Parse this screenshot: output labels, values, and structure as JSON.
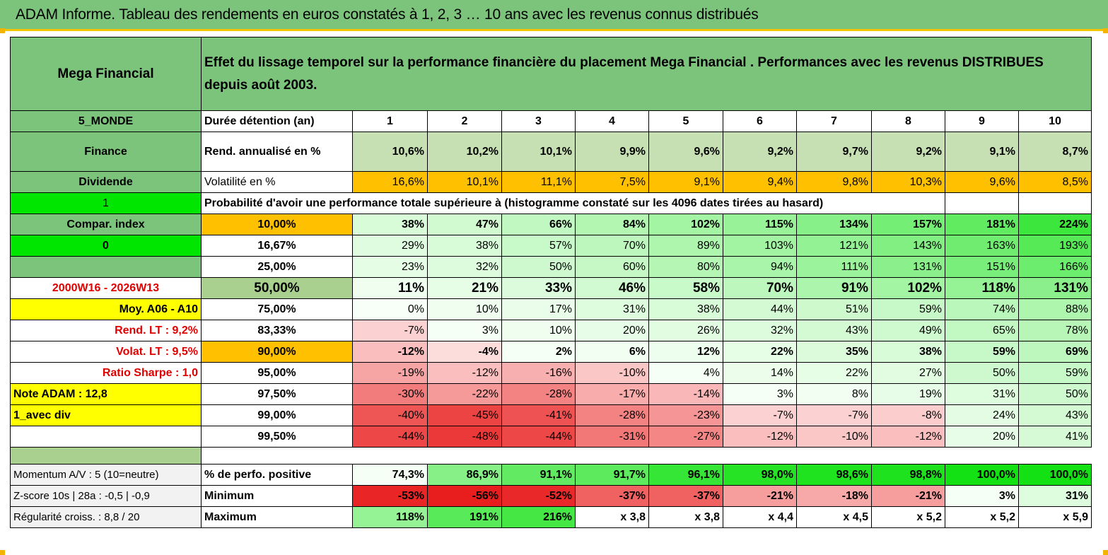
{
  "title": "ADAM Informe. Tableau des rendements en euros constatés à 1, 2, 3 … 10 ans avec les revenus connus distribués",
  "header": {
    "fund_name": "Mega Financial",
    "description": "Effet du lissage temporel sur la performance financière du placement Mega Financial . Performances avec les revenus DISTRIBUES depuis août 2003."
  },
  "left_labels": {
    "zone": "5_MONDE",
    "sector": "Finance",
    "dividend": "Dividende",
    "flag1": "1",
    "compar": "Compar. index",
    "flag0": "0",
    "period": "2000W16 - 2026W13",
    "moy": "Moy. A06 - A10",
    "rend_lt": "Rend. LT :   9,2%",
    "volat_lt": "Volat. LT :   9,5%",
    "sharpe": "Ratio Sharpe :    1,0",
    "note": "Note ADAM : 12,8",
    "avec_div": "1_avec div",
    "momentum": "Momentum A/V : 5 (10=neutre)",
    "zscore": "Z-score 10s | 28a : -0,5 | -0,9",
    "regularite": "Régularité croiss. : 8,8 / 20"
  },
  "row_labels": {
    "duree": "Durée détention (an)",
    "rend": "Rend. annualisé en %",
    "volat": "Volatilité en %",
    "prob_header": "Probabilité d'avoir une performance totale supérieure à (histogramme constaté sur les 4096 dates tirées au hasard)",
    "pos": "% de perfo. positive",
    "min": "Minimum",
    "max": "Maximum"
  },
  "years": [
    "1",
    "2",
    "3",
    "4",
    "5",
    "6",
    "7",
    "8",
    "9",
    "10"
  ],
  "rend": [
    "10,6%",
    "10,2%",
    "10,1%",
    "9,9%",
    "9,6%",
    "9,2%",
    "9,7%",
    "9,2%",
    "9,1%",
    "8,7%"
  ],
  "volat": [
    "16,6%",
    "10,1%",
    "11,1%",
    "7,5%",
    "9,1%",
    "9,4%",
    "9,8%",
    "10,3%",
    "9,6%",
    "8,5%"
  ],
  "prob_rows": [
    {
      "p": "10,00%",
      "v": [
        "38%",
        "47%",
        "66%",
        "84%",
        "102%",
        "115%",
        "134%",
        "157%",
        "181%",
        "224%"
      ]
    },
    {
      "p": "16,67%",
      "v": [
        "29%",
        "38%",
        "57%",
        "70%",
        "89%",
        "103%",
        "121%",
        "143%",
        "163%",
        "193%"
      ]
    },
    {
      "p": "25,00%",
      "v": [
        "23%",
        "32%",
        "50%",
        "60%",
        "80%",
        "94%",
        "111%",
        "131%",
        "151%",
        "166%"
      ]
    },
    {
      "p": "50,00%",
      "v": [
        "11%",
        "21%",
        "33%",
        "46%",
        "58%",
        "70%",
        "91%",
        "102%",
        "118%",
        "131%"
      ]
    },
    {
      "p": "75,00%",
      "v": [
        "0%",
        "10%",
        "17%",
        "31%",
        "38%",
        "44%",
        "51%",
        "59%",
        "74%",
        "88%"
      ]
    },
    {
      "p": "83,33%",
      "v": [
        "-7%",
        "3%",
        "10%",
        "20%",
        "26%",
        "32%",
        "43%",
        "49%",
        "65%",
        "78%"
      ]
    },
    {
      "p": "90,00%",
      "v": [
        "-12%",
        "-4%",
        "2%",
        "6%",
        "12%",
        "22%",
        "35%",
        "38%",
        "59%",
        "69%"
      ]
    },
    {
      "p": "95,00%",
      "v": [
        "-19%",
        "-12%",
        "-16%",
        "-10%",
        "4%",
        "14%",
        "22%",
        "27%",
        "50%",
        "59%"
      ]
    },
    {
      "p": "97,50%",
      "v": [
        "-30%",
        "-22%",
        "-28%",
        "-17%",
        "-14%",
        "3%",
        "8%",
        "19%",
        "31%",
        "50%"
      ]
    },
    {
      "p": "99,00%",
      "v": [
        "-40%",
        "-45%",
        "-41%",
        "-28%",
        "-23%",
        "-7%",
        "-7%",
        "-8%",
        "24%",
        "43%"
      ]
    },
    {
      "p": "99,50%",
      "v": [
        "-44%",
        "-48%",
        "-44%",
        "-31%",
        "-27%",
        "-12%",
        "-10%",
        "-12%",
        "20%",
        "41%"
      ]
    }
  ],
  "pos": [
    "74,3%",
    "86,9%",
    "91,1%",
    "91,7%",
    "96,1%",
    "98,0%",
    "98,6%",
    "98,8%",
    "100,0%",
    "100,0%"
  ],
  "min": [
    "-53%",
    "-56%",
    "-52%",
    "-37%",
    "-37%",
    "-21%",
    "-18%",
    "-21%",
    "3%",
    "31%"
  ],
  "max": [
    "118%",
    "191%",
    "216%",
    "x 3,8",
    "x 3,8",
    "x 4,4",
    "x 4,5",
    "x 5,2",
    "x 5,2",
    "x 5,9"
  ],
  "colors": {
    "title_green": "#7cc47c",
    "label_green": "#7cc47c",
    "orange": "#ffc000",
    "yellow": "#ffff00",
    "bright_green": "#00e600",
    "label_red": "#e00000"
  }
}
